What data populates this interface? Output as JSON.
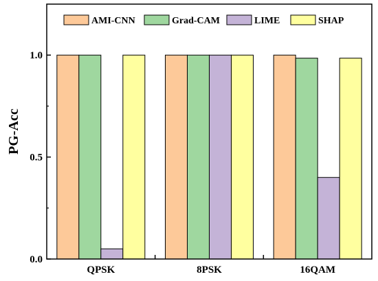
{
  "chart_data": {
    "type": "bar",
    "title": "",
    "xlabel": "",
    "ylabel": "PG-Acc",
    "categories": [
      "QPSK",
      "8PSK",
      "16QAM"
    ],
    "series": [
      {
        "name": "AMI-CNN",
        "values": [
          1.0,
          1.0,
          1.0
        ],
        "color": "#FDC999"
      },
      {
        "name": "Grad-CAM",
        "values": [
          1.0,
          1.0,
          0.985
        ],
        "color": "#9FD79F"
      },
      {
        "name": "LIME",
        "values": [
          0.05,
          1.0,
          0.4
        ],
        "color": "#C4B3D7"
      },
      {
        "name": "SHAP",
        "values": [
          1.0,
          1.0,
          0.985
        ],
        "color": "#FFFF9F"
      }
    ],
    "ylim": [
      0,
      1.25
    ],
    "yticks": [
      0.0,
      0.5,
      1.0
    ],
    "ytick_labels": [
      "0.0",
      "0.5",
      "1.0"
    ],
    "grid": false,
    "legend_position": "top"
  }
}
